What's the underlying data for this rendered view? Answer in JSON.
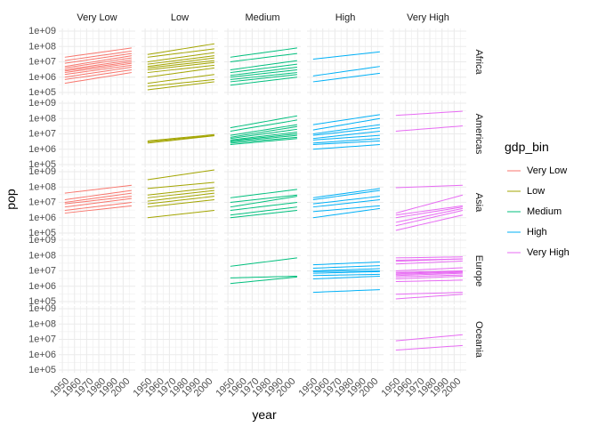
{
  "chart_data": {
    "type": "line",
    "facet_type": "grid",
    "x_var": "year",
    "y_var": "pop",
    "xlabel": "year",
    "ylabel": "pop",
    "y_scale": "log10",
    "xlim": [
      1947,
      2010
    ],
    "ylim": [
      100000,
      1000000000
    ],
    "x_ticks": [
      1950,
      1960,
      1970,
      1980,
      1990,
      2000
    ],
    "x_tick_labels": [
      "1950",
      "1960",
      "1970",
      "1980",
      "1990",
      "2000"
    ],
    "y_ticks": [
      100000,
      1000000,
      10000000,
      100000000,
      1000000000
    ],
    "y_tick_labels": [
      "1e+05",
      "1e+06",
      "1e+07",
      "1e+08",
      "1e+09"
    ],
    "grid": true,
    "legend_position": "right",
    "facet_cols": [
      "Very Low",
      "Low",
      "Medium",
      "High",
      "Very High"
    ],
    "facet_rows": [
      "Africa",
      "Americas",
      "Asia",
      "Europe",
      "Oceania"
    ],
    "legend": {
      "title": "gdp_bin",
      "items": [
        {
          "label": "Very Low",
          "color": "#F8766D"
        },
        {
          "label": "Low",
          "color": "#A3A500"
        },
        {
          "label": "Medium",
          "color": "#00BF7D"
        },
        {
          "label": "High",
          "color": "#00B0F6"
        },
        {
          "label": "Very High",
          "color": "#E76BF3"
        }
      ]
    },
    "years": [
      1952,
      1957,
      1962,
      1967,
      1972,
      1977,
      1982,
      1987,
      1992,
      1997,
      2002,
      2007
    ],
    "panels": [
      {
        "row": "Africa",
        "col": "Very Low",
        "series": [
          {
            "start": 20000000,
            "end": 80000000
          },
          {
            "start": 12000000,
            "end": 50000000
          },
          {
            "start": 8000000,
            "end": 35000000
          },
          {
            "start": 5000000,
            "end": 25000000
          },
          {
            "start": 4000000,
            "end": 18000000
          },
          {
            "start": 3000000,
            "end": 13000000
          },
          {
            "start": 2500000,
            "end": 10000000
          },
          {
            "start": 2000000,
            "end": 8000000
          },
          {
            "start": 1500000,
            "end": 6000000
          },
          {
            "start": 1000000,
            "end": 4500000
          },
          {
            "start": 700000,
            "end": 3000000
          },
          {
            "start": 400000,
            "end": 2000000
          }
        ]
      },
      {
        "row": "Africa",
        "col": "Low",
        "series": [
          {
            "start": 30000000,
            "end": 150000000
          },
          {
            "start": 20000000,
            "end": 70000000
          },
          {
            "start": 10000000,
            "end": 40000000
          },
          {
            "start": 7000000,
            "end": 25000000
          },
          {
            "start": 5000000,
            "end": 18000000
          },
          {
            "start": 4000000,
            "end": 12000000
          },
          {
            "start": 3000000,
            "end": 9000000
          },
          {
            "start": 2000000,
            "end": 6000000
          },
          {
            "start": 1000000,
            "end": 4000000
          },
          {
            "start": 400000,
            "end": 1500000
          },
          {
            "start": 250000,
            "end": 700000
          },
          {
            "start": 150000,
            "end": 500000
          }
        ]
      },
      {
        "row": "Africa",
        "col": "Medium",
        "series": [
          {
            "start": 20000000,
            "end": 80000000
          },
          {
            "start": 10000000,
            "end": 35000000
          },
          {
            "start": 3000000,
            "end": 12000000
          },
          {
            "start": 2000000,
            "end": 7000000
          },
          {
            "start": 1300000,
            "end": 4500000
          },
          {
            "start": 1000000,
            "end": 3000000
          },
          {
            "start": 700000,
            "end": 2000000
          },
          {
            "start": 500000,
            "end": 1500000
          },
          {
            "start": 300000,
            "end": 1000000
          }
        ]
      },
      {
        "row": "Africa",
        "col": "High",
        "series": [
          {
            "start": 15000000,
            "end": 45000000
          },
          {
            "start": 1200000,
            "end": 5000000
          },
          {
            "start": 500000,
            "end": 1800000
          }
        ]
      },
      {
        "row": "Americas",
        "col": "Low",
        "series": [
          {
            "start": 3500000,
            "end": 9000000
          },
          {
            "start": 3000000,
            "end": 8000000
          },
          {
            "start": 2500000,
            "end": 7500000
          }
        ]
      },
      {
        "row": "Americas",
        "col": "Medium",
        "series": [
          {
            "start": 25000000,
            "end": 150000000
          },
          {
            "start": 15000000,
            "end": 80000000
          },
          {
            "start": 8000000,
            "end": 40000000
          },
          {
            "start": 6000000,
            "end": 30000000
          },
          {
            "start": 5000000,
            "end": 20000000
          },
          {
            "start": 4000000,
            "end": 13000000
          },
          {
            "start": 3500000,
            "end": 10000000
          },
          {
            "start": 3000000,
            "end": 8000000
          },
          {
            "start": 2500000,
            "end": 6000000
          },
          {
            "start": 2000000,
            "end": 5000000
          }
        ]
      },
      {
        "row": "Americas",
        "col": "High",
        "series": [
          {
            "start": 40000000,
            "end": 180000000
          },
          {
            "start": 18000000,
            "end": 100000000
          },
          {
            "start": 10000000,
            "end": 40000000
          },
          {
            "start": 8000000,
            "end": 25000000
          },
          {
            "start": 5000000,
            "end": 15000000
          },
          {
            "start": 4000000,
            "end": 8000000
          },
          {
            "start": 2500000,
            "end": 5000000
          },
          {
            "start": 2000000,
            "end": 3500000
          },
          {
            "start": 1000000,
            "end": 2000000
          }
        ]
      },
      {
        "row": "Americas",
        "col": "Very High",
        "series": [
          {
            "start": 160000000,
            "end": 300000000
          },
          {
            "start": 15000000,
            "end": 33000000
          }
        ]
      },
      {
        "row": "Asia",
        "col": "Very Low",
        "series": [
          {
            "start": 40000000,
            "end": 130000000
          },
          {
            "start": 15000000,
            "end": 60000000
          },
          {
            "start": 10000000,
            "end": 40000000
          },
          {
            "start": 8000000,
            "end": 25000000
          },
          {
            "start": 5000000,
            "end": 18000000
          },
          {
            "start": 3000000,
            "end": 10000000
          },
          {
            "start": 2000000,
            "end": 6000000
          }
        ]
      },
      {
        "row": "Asia",
        "col": "Low",
        "series": [
          {
            "start": 300000000,
            "end": 1300000000
          },
          {
            "start": 80000000,
            "end": 200000000
          },
          {
            "start": 30000000,
            "end": 90000000
          },
          {
            "start": 20000000,
            "end": 60000000
          },
          {
            "start": 12000000,
            "end": 40000000
          },
          {
            "start": 8000000,
            "end": 25000000
          },
          {
            "start": 5000000,
            "end": 15000000
          },
          {
            "start": 1000000,
            "end": 3000000
          }
        ]
      },
      {
        "row": "Asia",
        "col": "Medium",
        "series": [
          {
            "start": 20000000,
            "end": 70000000
          },
          {
            "start": 10000000,
            "end": 30000000
          },
          {
            "start": 5000000,
            "end": 25000000
          },
          {
            "start": 3000000,
            "end": 10000000
          },
          {
            "start": 1500000,
            "end": 5000000
          },
          {
            "start": 1000000,
            "end": 3000000
          }
        ]
      },
      {
        "row": "Asia",
        "col": "High",
        "series": [
          {
            "start": 20000000,
            "end": 80000000
          },
          {
            "start": 15000000,
            "end": 60000000
          },
          {
            "start": 8000000,
            "end": 25000000
          },
          {
            "start": 5000000,
            "end": 15000000
          },
          {
            "start": 2500000,
            "end": 6000000
          },
          {
            "start": 1000000,
            "end": 4000000
          }
        ]
      },
      {
        "row": "Asia",
        "col": "Very High",
        "series": [
          {
            "start": 90000000,
            "end": 130000000
          },
          {
            "start": 2000000,
            "end": 30000000
          },
          {
            "start": 1500000,
            "end": 6000000
          },
          {
            "start": 1000000,
            "end": 5000000
          },
          {
            "start": 500000,
            "end": 4000000
          },
          {
            "start": 300000,
            "end": 3000000
          },
          {
            "start": 150000,
            "end": 1500000
          }
        ]
      },
      {
        "row": "Europe",
        "col": "Medium",
        "series": [
          {
            "start": 20000000,
            "end": 70000000
          },
          {
            "start": 3500000,
            "end": 4500000
          },
          {
            "start": 1500000,
            "end": 4000000
          }
        ]
      },
      {
        "row": "Europe",
        "col": "High",
        "series": [
          {
            "start": 25000000,
            "end": 38000000
          },
          {
            "start": 15000000,
            "end": 22000000
          },
          {
            "start": 10000000,
            "end": 14000000
          },
          {
            "start": 9000000,
            "end": 10000000
          },
          {
            "start": 7000000,
            "end": 9000000
          },
          {
            "start": 5000000,
            "end": 6000000
          },
          {
            "start": 3000000,
            "end": 4500000
          },
          {
            "start": 400000,
            "end": 600000
          }
        ]
      },
      {
        "row": "Europe",
        "col": "Very High",
        "series": [
          {
            "start": 70000000,
            "end": 82000000
          },
          {
            "start": 50000000,
            "end": 60000000
          },
          {
            "start": 42000000,
            "end": 61000000
          },
          {
            "start": 28000000,
            "end": 44000000
          },
          {
            "start": 10000000,
            "end": 16000000
          },
          {
            "start": 8000000,
            "end": 10000000
          },
          {
            "start": 7000000,
            "end": 9000000
          },
          {
            "start": 6000000,
            "end": 8000000
          },
          {
            "start": 5000000,
            "end": 7000000
          },
          {
            "start": 4000000,
            "end": 5500000
          },
          {
            "start": 3000000,
            "end": 4500000
          },
          {
            "start": 2000000,
            "end": 2500000
          },
          {
            "start": 300000,
            "end": 400000
          },
          {
            "start": 150000,
            "end": 300000
          }
        ]
      },
      {
        "row": "Oceania",
        "col": "Very High",
        "series": [
          {
            "start": 8000000,
            "end": 20000000
          },
          {
            "start": 2000000,
            "end": 4000000
          }
        ]
      }
    ]
  }
}
